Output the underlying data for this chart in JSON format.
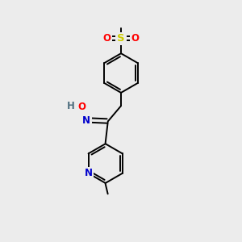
{
  "bg_color": "#ececec",
  "atom_colors": {
    "C": "#000000",
    "N": "#0000cc",
    "O": "#ff0000",
    "S": "#cccc00",
    "H": "#507080"
  },
  "bond_color": "#000000",
  "bond_width": 1.4,
  "font_size": 8.5,
  "figsize": [
    3.0,
    3.0
  ],
  "dpi": 100
}
